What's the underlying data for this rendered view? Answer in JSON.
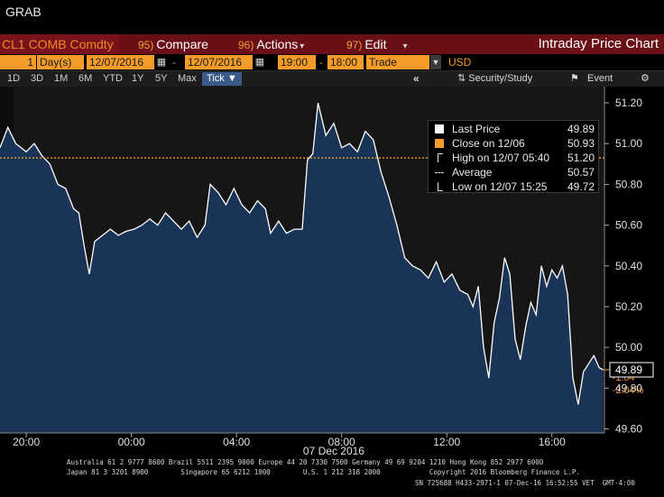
{
  "window": {
    "title": "GRAB"
  },
  "toolbar": {
    "ticker": "CL1 COMB Comdty",
    "compare": {
      "num": "95)",
      "label": "Compare"
    },
    "actions": {
      "num": "96)",
      "label": "Actions"
    },
    "edit": {
      "num": "97)",
      "label": "Edit"
    },
    "chart_title": "Intraday Price Chart"
  },
  "params": {
    "period_count": "1",
    "period_unit": "Day(s)",
    "start_date": "12/07/2016",
    "end_date": "12/07/2016",
    "start_time": "19:00",
    "end_time": "18:00",
    "event_type": "Trade",
    "currency": "USD"
  },
  "ranges": {
    "buttons": [
      "1D",
      "3D",
      "1M",
      "6M",
      "YTD",
      "1Y",
      "5Y",
      "Max"
    ],
    "selected": "Tick",
    "security_study": "Security/Study",
    "event": "Event"
  },
  "legend": {
    "last_price_label": "Last Price",
    "last_price_value": "49.89",
    "close_label": "Close on 12/06",
    "close_value": "50.93",
    "high_label": "High on 12/07 05:40",
    "high_value": "51.20",
    "average_label": "Average",
    "average_value": "50.57",
    "low_label": "Low on 12/07 15:25",
    "low_value": "49.72"
  },
  "colors": {
    "accent_orange": "#f39c2a",
    "command_bar": "#6b0f17",
    "area_fill": "#1a3458",
    "price_line": "#ffffff",
    "change_text": "#f08a24"
  },
  "chart_data": {
    "type": "line",
    "title": "",
    "xlabel": "07 Dec 2016",
    "ylabel": "",
    "x_ticks": [
      "20:00",
      "00:00",
      "04:00",
      "08:00",
      "12:00",
      "16:00"
    ],
    "y_ticks": [
      "51.20",
      "51.00",
      "50.80",
      "50.60",
      "50.40",
      "50.20",
      "50.00",
      "49.80",
      "49.60"
    ],
    "ylim": [
      49.58,
      51.28
    ],
    "xlim_hours": [
      19.0,
      42.0
    ],
    "series": [
      {
        "points": [
          [
            19.0,
            50.98
          ],
          [
            19.3,
            51.08
          ],
          [
            19.6,
            51.0
          ],
          [
            20.0,
            50.96
          ],
          [
            20.3,
            51.0
          ],
          [
            20.6,
            50.94
          ],
          [
            20.9,
            50.9
          ],
          [
            21.2,
            50.8
          ],
          [
            21.5,
            50.78
          ],
          [
            21.8,
            50.68
          ],
          [
            22.0,
            50.66
          ],
          [
            22.2,
            50.5
          ],
          [
            22.4,
            50.36
          ],
          [
            22.6,
            50.52
          ],
          [
            22.9,
            50.55
          ],
          [
            23.2,
            50.58
          ],
          [
            23.5,
            50.55
          ],
          [
            23.8,
            50.57
          ],
          [
            24.1,
            50.58
          ],
          [
            24.4,
            50.6
          ],
          [
            24.7,
            50.63
          ],
          [
            25.0,
            50.6
          ],
          [
            25.3,
            50.66
          ],
          [
            25.6,
            50.62
          ],
          [
            25.9,
            50.58
          ],
          [
            26.2,
            50.62
          ],
          [
            26.5,
            50.54
          ],
          [
            26.8,
            50.6
          ],
          [
            27.0,
            50.8
          ],
          [
            27.3,
            50.76
          ],
          [
            27.6,
            50.7
          ],
          [
            27.9,
            50.78
          ],
          [
            28.2,
            50.7
          ],
          [
            28.5,
            50.66
          ],
          [
            28.8,
            50.72
          ],
          [
            29.1,
            50.68
          ],
          [
            29.3,
            50.56
          ],
          [
            29.6,
            50.62
          ],
          [
            29.9,
            50.56
          ],
          [
            30.2,
            50.58
          ],
          [
            30.5,
            50.58
          ],
          [
            30.7,
            50.92
          ],
          [
            30.9,
            50.95
          ],
          [
            31.1,
            51.2
          ],
          [
            31.4,
            51.04
          ],
          [
            31.7,
            51.1
          ],
          [
            32.0,
            50.98
          ],
          [
            32.3,
            51.0
          ],
          [
            32.6,
            50.96
          ],
          [
            32.9,
            51.06
          ],
          [
            33.2,
            51.02
          ],
          [
            33.5,
            50.86
          ],
          [
            33.8,
            50.74
          ],
          [
            34.1,
            50.6
          ],
          [
            34.4,
            50.44
          ],
          [
            34.7,
            50.4
          ],
          [
            35.0,
            50.38
          ],
          [
            35.3,
            50.34
          ],
          [
            35.6,
            50.42
          ],
          [
            35.9,
            50.32
          ],
          [
            36.2,
            50.36
          ],
          [
            36.5,
            50.28
          ],
          [
            36.8,
            50.26
          ],
          [
            37.0,
            50.2
          ],
          [
            37.2,
            50.3
          ],
          [
            37.4,
            50.0
          ],
          [
            37.6,
            49.85
          ],
          [
            37.8,
            50.12
          ],
          [
            38.0,
            50.24
          ],
          [
            38.2,
            50.44
          ],
          [
            38.4,
            50.36
          ],
          [
            38.6,
            50.04
          ],
          [
            38.8,
            49.94
          ],
          [
            39.0,
            50.1
          ],
          [
            39.2,
            50.22
          ],
          [
            39.4,
            50.16
          ],
          [
            39.6,
            50.4
          ],
          [
            39.8,
            50.3
          ],
          [
            40.0,
            50.38
          ],
          [
            40.2,
            50.34
          ],
          [
            40.4,
            50.4
          ],
          [
            40.6,
            50.26
          ],
          [
            40.8,
            49.85
          ],
          [
            41.0,
            49.72
          ],
          [
            41.2,
            49.88
          ],
          [
            41.4,
            49.92
          ],
          [
            41.6,
            49.96
          ],
          [
            41.8,
            49.9
          ],
          [
            41.95,
            49.89
          ]
        ]
      }
    ],
    "reference_lines": [
      {
        "value": 50.93
      }
    ],
    "last_value": "49.89",
    "change_abs": "-1.04",
    "change_pct": "-2.04%",
    "grid": "none",
    "legend_position": "top-right"
  },
  "footer": {
    "line1": "Australia 61 2 9777 8600 Brazil 5511 2395 9000 Europe 44 20 7330 7500 Germany 49 69 9204 1210 Hong Kong 852 2977 6000",
    "line2": "Japan 81 3 3201 8900        Singapore 65 6212 1000        U.S. 1 212 318 2000            Copyright 2016 Bloomberg Finance L.P.",
    "line3": "SN 725688 H433-2971-1 07-Dec-16 16:52:55 VET  GMT-4:00"
  }
}
